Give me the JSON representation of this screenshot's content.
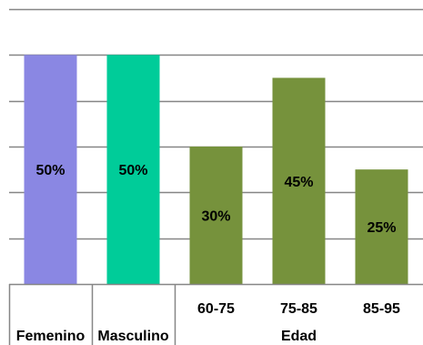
{
  "chart_data": {
    "type": "bar",
    "categories": [
      "Femenino",
      "Masculino",
      "60-75",
      "75-85",
      "85-95"
    ],
    "values": [
      50,
      50,
      30,
      45,
      25
    ],
    "data_labels": [
      "50%",
      "50%",
      "30%",
      "45%",
      "25%"
    ],
    "colors": [
      "#8A87E3",
      "#00CC99",
      "#76923C",
      "#76923C",
      "#76923C"
    ],
    "group_label": "Edad",
    "ylim": [
      0,
      60
    ],
    "grid": true,
    "legend": "none",
    "gridline_color": "#868686"
  }
}
